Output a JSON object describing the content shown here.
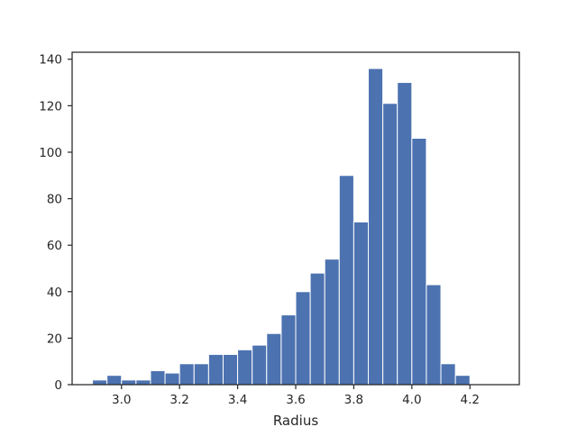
{
  "chart_data": {
    "type": "bar",
    "title": "",
    "xlabel": "Radius",
    "ylabel": "",
    "bin_start": 2.9,
    "bin_width": 0.05,
    "values": [
      2,
      4,
      2,
      2,
      6,
      5,
      9,
      9,
      13,
      13,
      15,
      17,
      22,
      30,
      40,
      48,
      54,
      90,
      70,
      136,
      121,
      130,
      106,
      43,
      9,
      4
    ],
    "xlim": [
      2.83,
      4.37
    ],
    "ylim": [
      0,
      143
    ],
    "xticks": [
      "3.0",
      "3.2",
      "3.4",
      "3.6",
      "3.8",
      "4.0",
      "4.2"
    ],
    "yticks": [
      "0",
      "20",
      "40",
      "60",
      "80",
      "100",
      "120",
      "140"
    ],
    "bar_color": "#4c72b0",
    "edge_color": "#ffffff",
    "grid": false,
    "legend": "none"
  }
}
